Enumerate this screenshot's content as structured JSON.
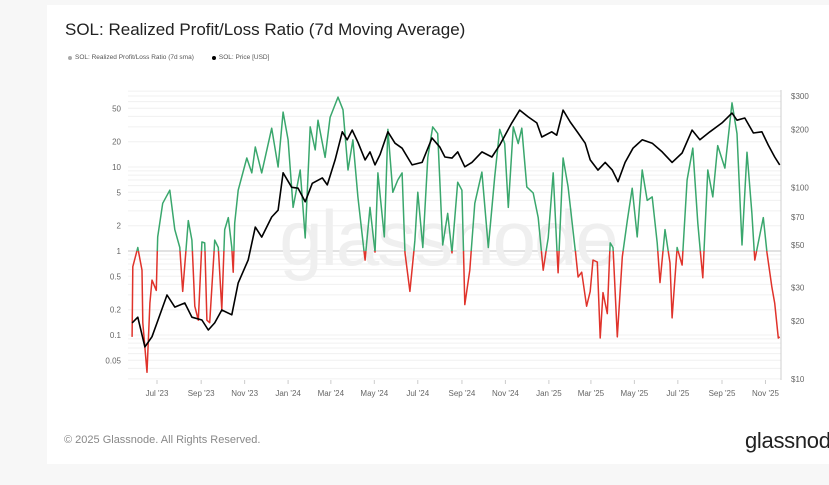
{
  "title": "SOL: Realized Profit/Loss Ratio (7d Moving Average)",
  "legend": [
    {
      "label": "SOL: Realized Profit/Loss Ratio (7d sma)",
      "color": "#aaaaaa"
    },
    {
      "label": "SOL: Price [USD]",
      "color": "#000000"
    }
  ],
  "footer": {
    "copyright": "© 2025 Glassnode. All Rights Reserved.",
    "logo": "glassnode"
  },
  "watermark": "glassnode",
  "colors": {
    "above_one": "#3aa76d",
    "below_one": "#e0332b",
    "price": "#000000"
  },
  "chart_data": {
    "type": "line",
    "title": "SOL: Realized Profit/Loss Ratio (7d Moving Average)",
    "grid": true,
    "legend_position": "top-left",
    "x_ticks": [
      "Jul '23",
      "Sep '23",
      "Nov '23",
      "Jan '24",
      "Mar '24",
      "May '24",
      "Jul '24",
      "Sep '24",
      "Nov '24",
      "Jan '25",
      "Mar '25",
      "May '25",
      "Jul '25",
      "Sep '25",
      "Nov '25"
    ],
    "x_tick_dates": [
      "2023-07-01",
      "2023-09-01",
      "2023-11-01",
      "2024-01-01",
      "2024-03-01",
      "2024-05-01",
      "2024-07-01",
      "2024-09-01",
      "2024-11-01",
      "2025-01-01",
      "2025-03-01",
      "2025-05-01",
      "2025-07-01",
      "2025-09-01",
      "2025-11-01"
    ],
    "left_axis": {
      "scale": "log",
      "ticks": [
        "0.05",
        "0.1",
        "0.2",
        "0.5",
        "1",
        "2",
        "5",
        "10",
        "20",
        "50"
      ],
      "threshold": 1
    },
    "right_axis": {
      "scale": "log",
      "ticks": [
        "$10",
        "$20",
        "$30",
        "$50",
        "$70",
        "$100",
        "$200",
        "$300"
      ]
    },
    "series": [
      {
        "name": "SOL: Realized Profit/Loss Ratio (7d sma)",
        "axis": "left",
        "dates": [
          "2023-05-27",
          "2023-05-28",
          "2023-06-04",
          "2023-06-10",
          "2023-06-11",
          "2023-06-17",
          "2023-06-21",
          "2023-06-24",
          "2023-06-30",
          "2023-07-02",
          "2023-07-09",
          "2023-07-19",
          "2023-07-26",
          "2023-08-02",
          "2023-08-06",
          "2023-08-14",
          "2023-08-19",
          "2023-08-23",
          "2023-08-28",
          "2023-09-02",
          "2023-09-06",
          "2023-09-09",
          "2023-09-13",
          "2023-09-20",
          "2023-09-25",
          "2023-09-30",
          "2023-10-04",
          "2023-10-09",
          "2023-10-14",
          "2023-10-16",
          "2023-10-18",
          "2023-10-23",
          "2023-11-04",
          "2023-11-11",
          "2023-11-16",
          "2023-11-25",
          "2023-12-09",
          "2023-12-18",
          "2023-12-25",
          "2024-01-01",
          "2024-01-08",
          "2024-01-18",
          "2024-01-25",
          "2024-02-01",
          "2024-02-08",
          "2024-02-12",
          "2024-02-22",
          "2024-02-29",
          "2024-03-11",
          "2024-03-18",
          "2024-03-25",
          "2024-04-01",
          "2024-04-08",
          "2024-04-18",
          "2024-04-25",
          "2024-05-02",
          "2024-05-06",
          "2024-05-15",
          "2024-05-20",
          "2024-05-27",
          "2024-06-03",
          "2024-06-09",
          "2024-06-13",
          "2024-06-20",
          "2024-06-27",
          "2024-07-01",
          "2024-07-08",
          "2024-07-15",
          "2024-07-22",
          "2024-07-29",
          "2024-08-05",
          "2024-08-12",
          "2024-08-18",
          "2024-08-26",
          "2024-09-01",
          "2024-09-05",
          "2024-09-12",
          "2024-09-19",
          "2024-09-29",
          "2024-10-08",
          "2024-10-17",
          "2024-10-24",
          "2024-10-31",
          "2024-11-05",
          "2024-11-12",
          "2024-11-19",
          "2024-11-24",
          "2024-12-01",
          "2024-12-10",
          "2024-12-17",
          "2024-12-24",
          "2024-12-31",
          "2025-01-07",
          "2025-01-14",
          "2025-01-21",
          "2025-01-28",
          "2025-02-07",
          "2025-02-11",
          "2025-02-16",
          "2025-02-23",
          "2025-02-28",
          "2025-03-04",
          "2025-03-10",
          "2025-03-14",
          "2025-03-18",
          "2025-03-24",
          "2025-03-28",
          "2025-04-01",
          "2025-04-07",
          "2025-04-14",
          "2025-04-21",
          "2025-04-28",
          "2025-05-05",
          "2025-05-12",
          "2025-05-19",
          "2025-05-26",
          "2025-06-02",
          "2025-06-06",
          "2025-06-13",
          "2025-06-20",
          "2025-06-23",
          "2025-06-30",
          "2025-07-07",
          "2025-07-14",
          "2025-07-22",
          "2025-07-29",
          "2025-08-05",
          "2025-08-12",
          "2025-08-19",
          "2025-08-26",
          "2025-09-05",
          "2025-09-15",
          "2025-09-22",
          "2025-09-29",
          "2025-10-06",
          "2025-10-13",
          "2025-10-17",
          "2025-10-29",
          "2025-11-03",
          "2025-11-10",
          "2025-11-14",
          "2025-11-19",
          "2025-11-21"
        ],
        "values": [
          0.095,
          0.65,
          1.1,
          0.59,
          0.14,
          0.036,
          0.24,
          0.45,
          0.34,
          1.47,
          3.7,
          5.3,
          1.8,
          1.1,
          0.33,
          2.3,
          1.35,
          0.22,
          0.15,
          1.28,
          1.25,
          0.15,
          0.14,
          1.35,
          1.1,
          0.2,
          1.8,
          2.5,
          1.1,
          0.56,
          2.15,
          5.3,
          12.8,
          8.5,
          17.3,
          8.5,
          29,
          10,
          45,
          21,
          3.3,
          9.2,
          1.43,
          30,
          16,
          36,
          13,
          39,
          68,
          48,
          9.2,
          21,
          4.4,
          0.78,
          3.3,
          0.97,
          8.5,
          1.47,
          28,
          5.0,
          7.0,
          8.5,
          0.95,
          0.33,
          1.35,
          5.0,
          1.1,
          13,
          30,
          25,
          1.18,
          2.8,
          0.95,
          6.6,
          5.3,
          0.23,
          0.59,
          3.7,
          8.7,
          1.1,
          7.6,
          28,
          19,
          3.3,
          30,
          19,
          29,
          5.8,
          4.9,
          2.5,
          0.59,
          1.43,
          8.5,
          0.55,
          12.8,
          5.8,
          1.03,
          0.49,
          0.56,
          0.22,
          0.33,
          0.78,
          0.74,
          0.092,
          0.32,
          0.18,
          1.25,
          1.1,
          0.095,
          0.85,
          2.3,
          5.6,
          1.47,
          9.2,
          4.0,
          4.4,
          1.25,
          0.42,
          1.8,
          0.72,
          0.16,
          1.1,
          0.68,
          7.0,
          16.8,
          2.15,
          0.48,
          9.2,
          4.4,
          18,
          9.7,
          58,
          25,
          1.18,
          15,
          2.8,
          0.78,
          2.5,
          0.97,
          0.37,
          0.24,
          0.092,
          0.095
        ]
      },
      {
        "name": "SOL: Price [USD]",
        "axis": "right",
        "dates": [
          "2023-05-27",
          "2023-06-04",
          "2023-06-14",
          "2023-06-24",
          "2023-07-01",
          "2023-07-15",
          "2023-07-26",
          "2023-08-09",
          "2023-08-19",
          "2023-09-02",
          "2023-09-11",
          "2023-09-20",
          "2023-09-30",
          "2023-10-14",
          "2023-10-23",
          "2023-11-06",
          "2023-11-16",
          "2023-11-25",
          "2023-12-09",
          "2023-12-18",
          "2023-12-25",
          "2024-01-06",
          "2024-01-15",
          "2024-01-25",
          "2024-02-04",
          "2024-02-18",
          "2024-02-25",
          "2024-03-07",
          "2024-03-17",
          "2024-03-24",
          "2024-03-31",
          "2024-04-08",
          "2024-04-18",
          "2024-04-25",
          "2024-05-02",
          "2024-05-09",
          "2024-05-20",
          "2024-05-30",
          "2024-06-09",
          "2024-06-23",
          "2024-07-07",
          "2024-07-21",
          "2024-08-01",
          "2024-08-08",
          "2024-08-18",
          "2024-08-26",
          "2024-09-05",
          "2024-09-15",
          "2024-09-29",
          "2024-10-13",
          "2024-10-24",
          "2024-11-10",
          "2024-11-21",
          "2024-12-03",
          "2024-12-15",
          "2024-12-22",
          "2025-01-05",
          "2025-01-12",
          "2025-01-21",
          "2025-01-31",
          "2025-02-11",
          "2025-02-21",
          "2025-02-28",
          "2025-03-11",
          "2025-03-21",
          "2025-03-31",
          "2025-04-08",
          "2025-04-18",
          "2025-04-29",
          "2025-05-12",
          "2025-05-26",
          "2025-06-09",
          "2025-06-23",
          "2025-07-07",
          "2025-07-21",
          "2025-08-01",
          "2025-08-15",
          "2025-09-01",
          "2025-09-15",
          "2025-09-22",
          "2025-10-03",
          "2025-10-15",
          "2025-10-27",
          "2025-11-05",
          "2025-11-14",
          "2025-11-21"
        ],
        "values": [
          19.6,
          21.0,
          14.7,
          16.6,
          19.6,
          27.4,
          23.7,
          24.9,
          21.0,
          20.3,
          18.0,
          19.6,
          22.9,
          21.6,
          31.7,
          41.8,
          62,
          55,
          70,
          76,
          119,
          100,
          99,
          84,
          105,
          112,
          103,
          139,
          195,
          177,
          199,
          172,
          139,
          153,
          131,
          148,
          195,
          170,
          160,
          131,
          135,
          181,
          162,
          144,
          142,
          153,
          128,
          135,
          153,
          144,
          166,
          217,
          253,
          233,
          217,
          183,
          195,
          187,
          253,
          219,
          192,
          170,
          139,
          123,
          135,
          123,
          107,
          135,
          160,
          177,
          170,
          153,
          135,
          151,
          199,
          177,
          195,
          217,
          244,
          224,
          230,
          192,
          195,
          166,
          144,
          131
        ]
      }
    ]
  }
}
